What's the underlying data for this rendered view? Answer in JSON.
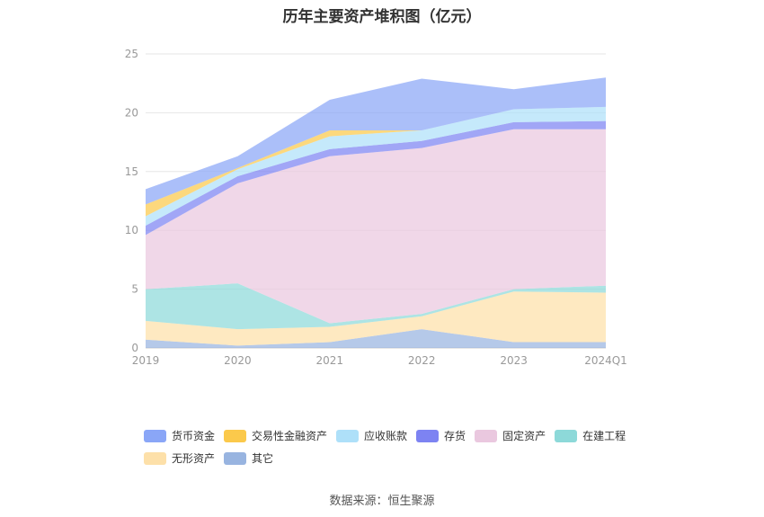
{
  "chart_data": {
    "type": "area",
    "title": "历年主要资产堆积图（亿元）",
    "xlabel": "",
    "ylabel": "",
    "categories": [
      "2019",
      "2020",
      "2021",
      "2022",
      "2023",
      "2024Q1"
    ],
    "ylim": [
      0,
      25
    ],
    "yticks": [
      "0",
      "5",
      "10",
      "15",
      "20",
      "25"
    ],
    "grid": true,
    "legend_position": "bottom",
    "series": [
      {
        "name": "货币资金",
        "color": "#8aa6f7",
        "values": [
          1.3,
          1.0,
          2.6,
          4.4,
          1.7,
          2.5
        ]
      },
      {
        "name": "交易性金融资产",
        "color": "#fbc94b",
        "values": [
          1.0,
          0.1,
          0.5,
          0.0,
          0.0,
          0.0
        ]
      },
      {
        "name": "应收账款",
        "color": "#aee0f9",
        "values": [
          0.8,
          0.6,
          1.1,
          0.9,
          1.1,
          1.2
        ]
      },
      {
        "name": "存货",
        "color": "#7d83f2",
        "values": [
          0.8,
          0.6,
          0.6,
          0.6,
          0.6,
          0.7
        ]
      },
      {
        "name": "固定资产",
        "color": "#eac8df",
        "values": [
          4.6,
          8.5,
          14.2,
          14.1,
          13.6,
          13.3
        ]
      },
      {
        "name": "在建工程",
        "color": "#8dd9d9",
        "values": [
          2.7,
          3.9,
          0.3,
          0.2,
          0.2,
          0.6
        ]
      },
      {
        "name": "无形资产",
        "color": "#fde0a9",
        "values": [
          1.6,
          1.4,
          1.3,
          1.1,
          4.3,
          4.2
        ]
      },
      {
        "name": "其它",
        "color": "#98b4e0",
        "values": [
          0.7,
          0.2,
          0.5,
          1.6,
          0.5,
          0.5
        ]
      }
    ]
  },
  "source": "数据来源：恒生聚源"
}
